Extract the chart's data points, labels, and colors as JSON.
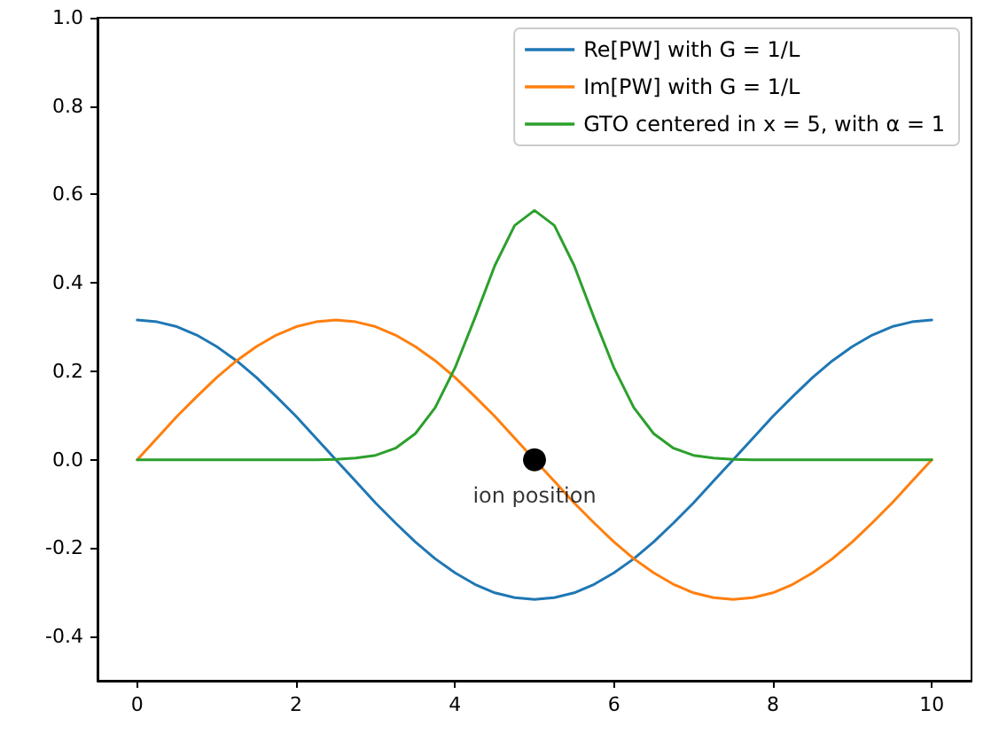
{
  "chart_data": {
    "type": "line",
    "x": [
      0,
      0.25,
      0.5,
      0.75,
      1,
      1.25,
      1.5,
      1.75,
      2,
      2.25,
      2.5,
      2.75,
      3,
      3.25,
      3.5,
      3.75,
      4,
      4.25,
      4.5,
      4.75,
      5,
      5.25,
      5.5,
      5.75,
      6,
      6.25,
      6.5,
      6.75,
      7,
      7.25,
      7.5,
      7.75,
      8,
      8.25,
      8.5,
      8.75,
      9,
      9.25,
      9.5,
      9.75,
      10
    ],
    "series": [
      {
        "name": "Re[PW] with G = 1/L",
        "color": "#1f77b4",
        "values": [
          0.316,
          0.312,
          0.301,
          0.282,
          0.256,
          0.224,
          0.186,
          0.143,
          0.098,
          0.049,
          0,
          -0.049,
          -0.098,
          -0.143,
          -0.186,
          -0.224,
          -0.256,
          -0.282,
          -0.301,
          -0.312,
          -0.316,
          -0.312,
          -0.301,
          -0.282,
          -0.256,
          -0.224,
          -0.186,
          -0.143,
          -0.098,
          -0.049,
          0,
          0.049,
          0.098,
          0.143,
          0.186,
          0.224,
          0.256,
          0.282,
          0.301,
          0.312,
          0.316
        ]
      },
      {
        "name": "Im[PW] with G = 1/L",
        "color": "#ff7f0e",
        "values": [
          0,
          0.049,
          0.098,
          0.143,
          0.186,
          0.224,
          0.256,
          0.282,
          0.301,
          0.312,
          0.316,
          0.312,
          0.301,
          0.282,
          0.256,
          0.224,
          0.186,
          0.143,
          0.098,
          0.049,
          0,
          -0.049,
          -0.098,
          -0.143,
          -0.186,
          -0.224,
          -0.256,
          -0.282,
          -0.301,
          -0.312,
          -0.316,
          -0.312,
          -0.301,
          -0.282,
          -0.256,
          -0.224,
          -0.186,
          -0.143,
          -0.098,
          -0.049,
          0
        ]
      },
      {
        "name": "GTO centered in x = 5, with α = 1",
        "color": "#2ca02c",
        "values": [
          0,
          0,
          0,
          0,
          0,
          0,
          0,
          0,
          0,
          0,
          0.001,
          0.004,
          0.01,
          0.026,
          0.059,
          0.118,
          0.208,
          0.321,
          0.439,
          0.53,
          0.564,
          0.53,
          0.439,
          0.321,
          0.208,
          0.118,
          0.059,
          0.026,
          0.01,
          0.004,
          0.001,
          0,
          0,
          0,
          0,
          0,
          0,
          0,
          0,
          0,
          0
        ]
      },
      {
        "type": "scatter",
        "color": "#000000",
        "marker": "circle",
        "x": [
          5
        ],
        "values": [
          0
        ]
      }
    ],
    "annotations": [
      {
        "text": "ion position",
        "x": 5,
        "y": 0
      }
    ],
    "xlim": [
      -0.5,
      10.5
    ],
    "xticks": [
      0,
      2,
      4,
      6,
      8,
      10
    ],
    "ylim": [
      -0.5,
      1
    ],
    "yticks": [
      -0.4,
      -0.2,
      {
        "value": 0,
        "label": "0.0"
      },
      0.2,
      0.4,
      0.6,
      0.8,
      {
        "value": 1,
        "label": "1.0"
      }
    ],
    "grid": false,
    "legend": "top right",
    "marker": "none",
    "line_style": "solid"
  }
}
